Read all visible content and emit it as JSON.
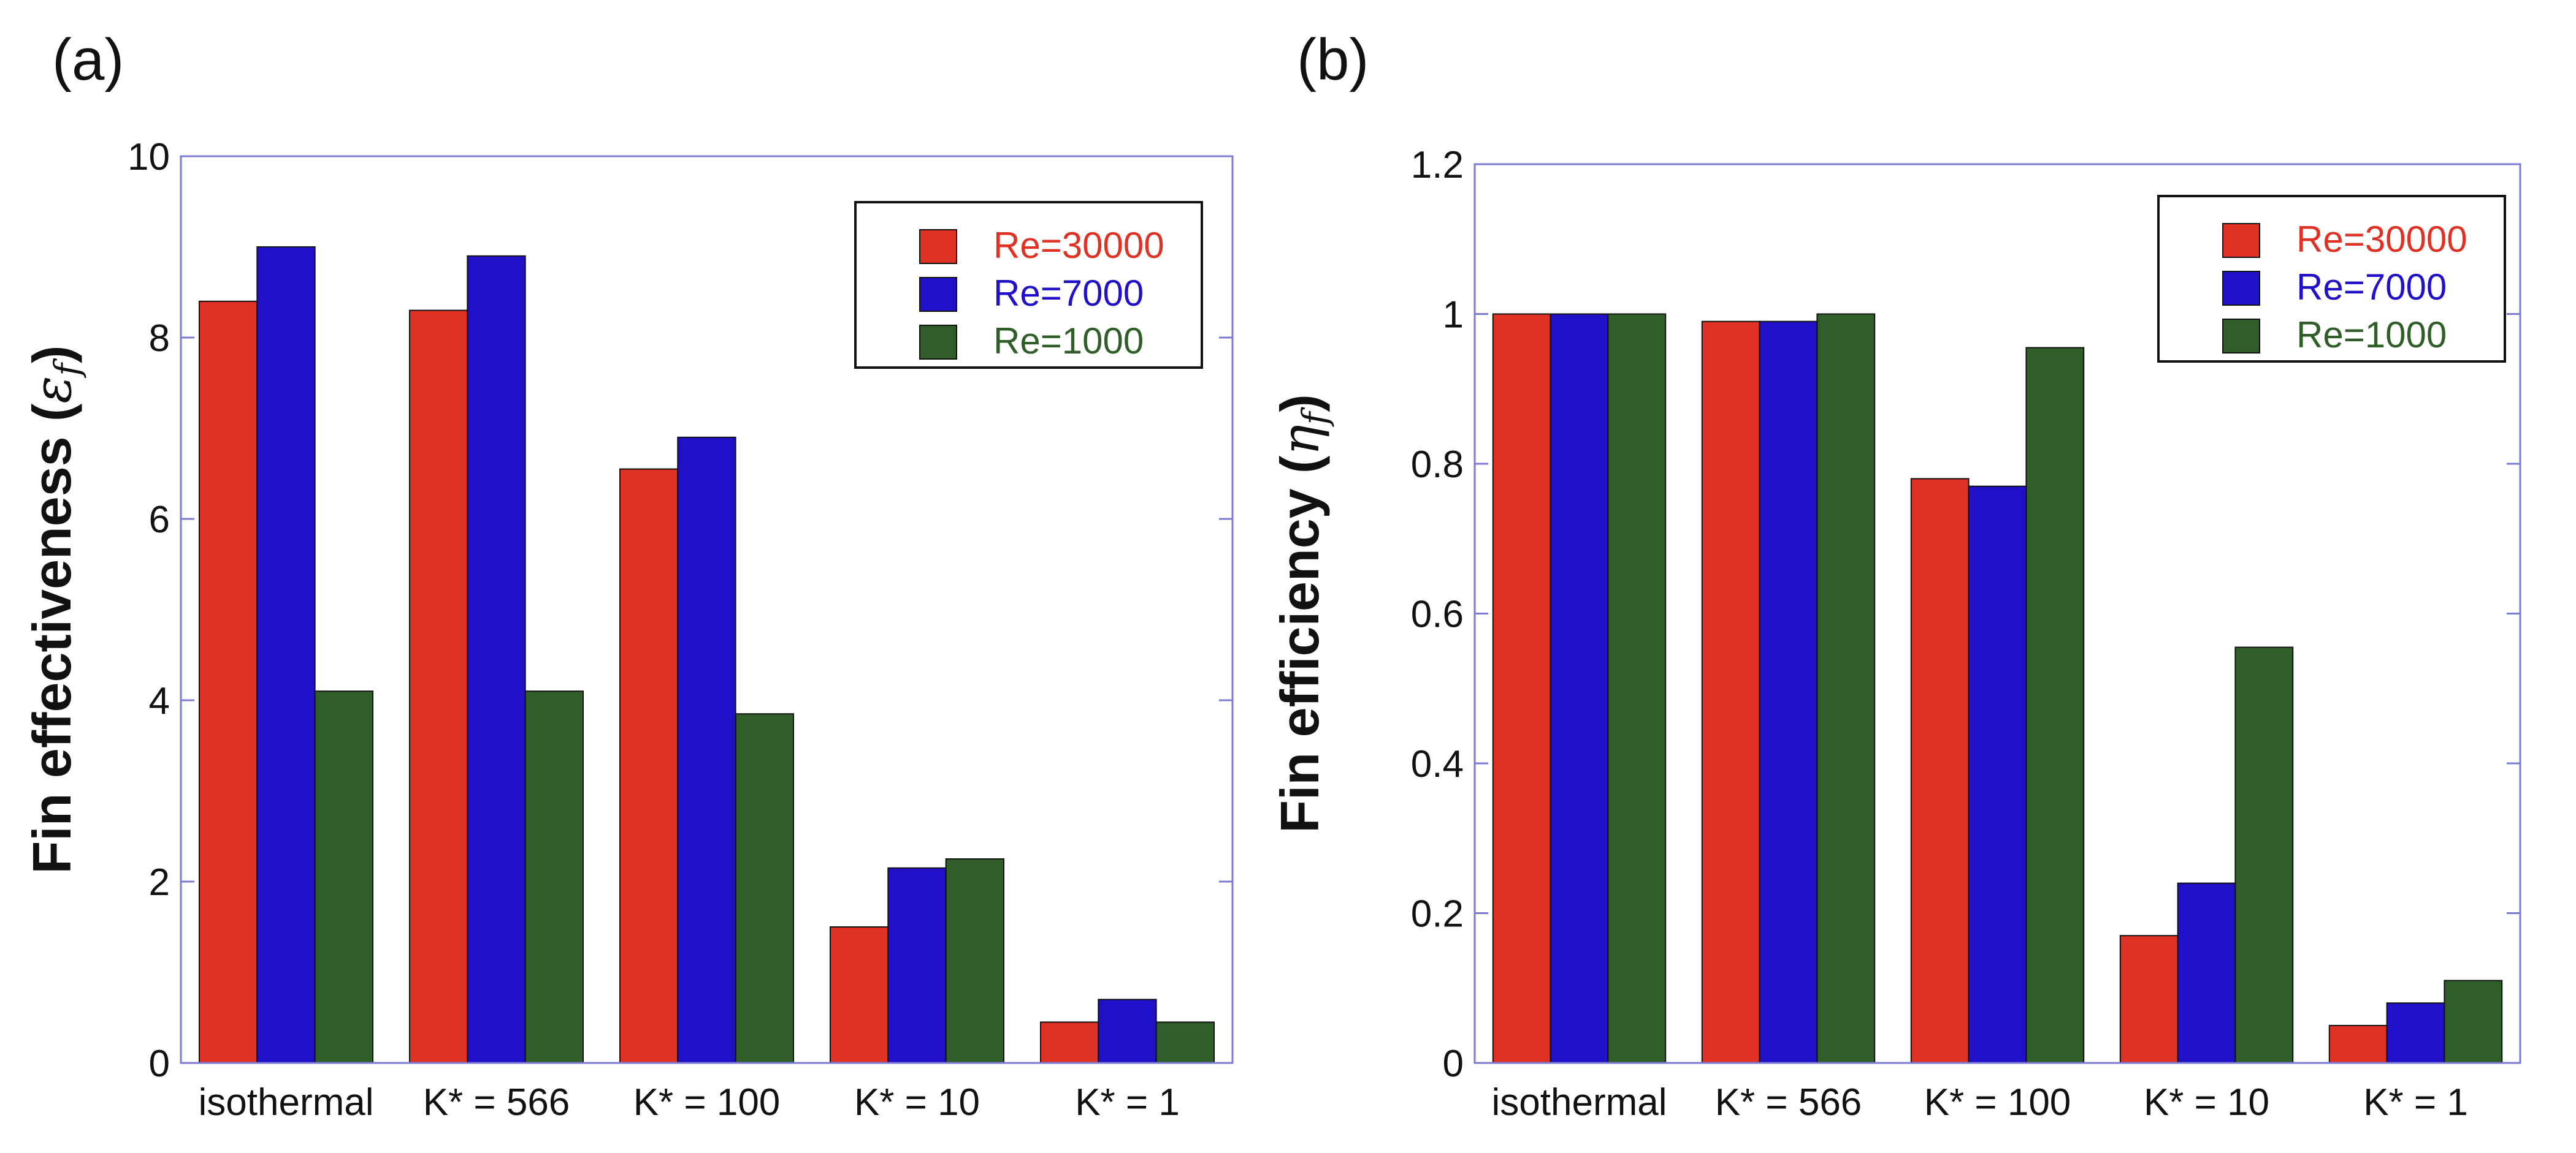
{
  "colors": {
    "axis": "#7b7bd6",
    "bar_edge": "#111111",
    "legend_edge": "#111111"
  },
  "chart_data": [
    {
      "type": "bar",
      "panel_label": "(a)",
      "title": "",
      "ylabel": "Fin effectiveness",
      "ylabel_symbol": "ε",
      "ylabel_subscript": "f",
      "xlabel": "",
      "ylim": [
        0,
        10
      ],
      "yticks": [
        0,
        2,
        4,
        6,
        8,
        10
      ],
      "ytick_labels": [
        "0",
        "2",
        "4",
        "6",
        "8",
        "10"
      ],
      "categories": [
        "isothermal",
        "K* = 566",
        "K* = 100",
        "K* = 10",
        "K* = 1"
      ],
      "series": [
        {
          "name": "Re=30000",
          "color": "#e03224",
          "values": [
            8.4,
            8.3,
            6.55,
            1.5,
            0.45
          ]
        },
        {
          "name": "Re=7000",
          "color": "#2010c8",
          "values": [
            9.0,
            8.9,
            6.9,
            2.15,
            0.7
          ]
        },
        {
          "name": "Re=1000",
          "color": "#2f5e28",
          "values": [
            4.1,
            4.1,
            3.85,
            2.25,
            0.45
          ]
        }
      ],
      "legend_position": "top-right",
      "grid": false
    },
    {
      "type": "bar",
      "panel_label": "(b)",
      "title": "",
      "ylabel": "Fin efficiency",
      "ylabel_symbol": "η",
      "ylabel_subscript": "f",
      "xlabel": "",
      "ylim": [
        0,
        1.2
      ],
      "yticks": [
        0,
        0.2,
        0.4,
        0.6,
        0.8,
        1.0,
        1.2
      ],
      "ytick_labels": [
        "0",
        "0.2",
        "0.4",
        "0.6",
        "0.8",
        "1",
        "1.2"
      ],
      "categories": [
        "isothermal",
        "K* = 566",
        "K* = 100",
        "K* = 10",
        "K* = 1"
      ],
      "series": [
        {
          "name": "Re=30000",
          "color": "#e03224",
          "values": [
            1.0,
            0.99,
            0.78,
            0.17,
            0.05
          ]
        },
        {
          "name": "Re=7000",
          "color": "#2010c8",
          "values": [
            1.0,
            0.99,
            0.77,
            0.24,
            0.08
          ]
        },
        {
          "name": "Re=1000",
          "color": "#2f5e28",
          "values": [
            1.0,
            1.0,
            0.955,
            0.555,
            0.11
          ]
        }
      ],
      "legend_position": "top-right",
      "grid": false
    }
  ]
}
